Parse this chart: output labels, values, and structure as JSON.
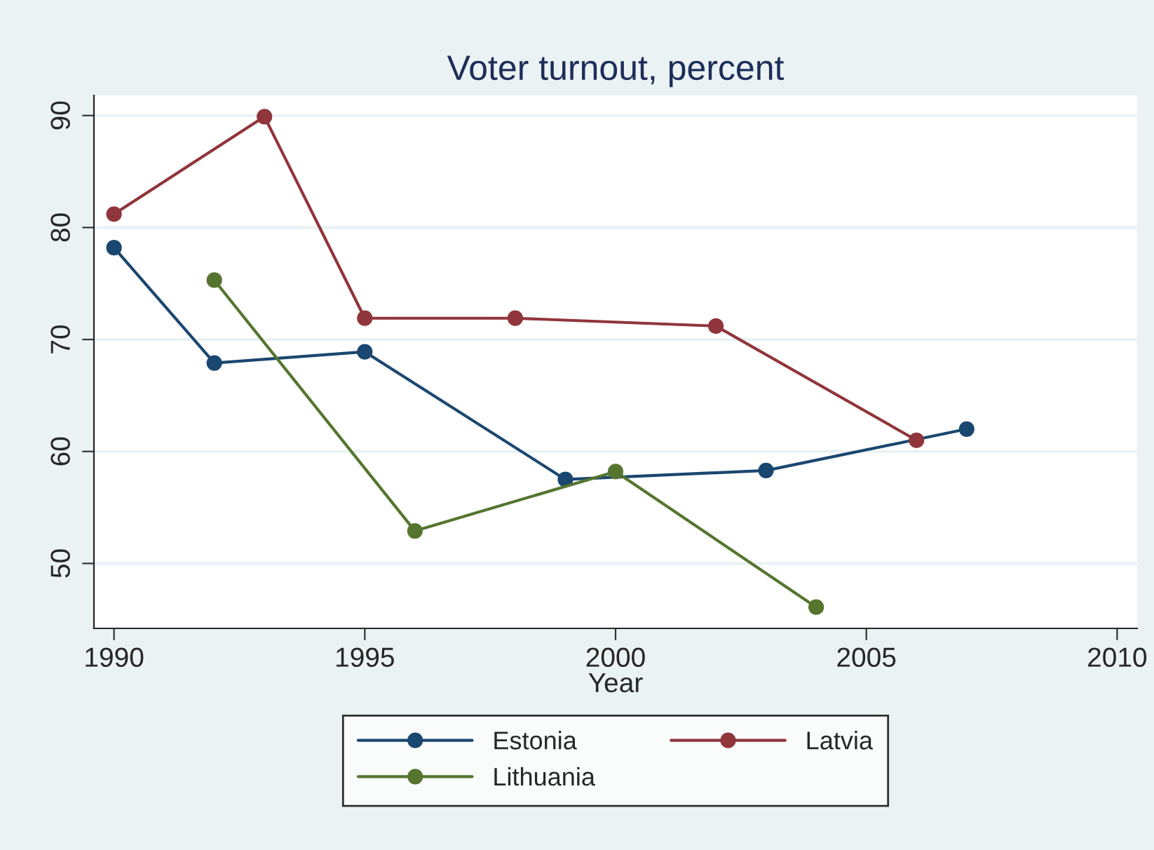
{
  "chart_data": {
    "type": "line",
    "title": "Voter turnout, percent",
    "xlabel": "Year",
    "xlim": [
      1989.6,
      2010.4
    ],
    "xticks": [
      1990,
      1995,
      2000,
      2005,
      2010
    ],
    "ylim": [
      44.2,
      91.8
    ],
    "yticks": [
      50,
      60,
      70,
      80,
      90
    ],
    "grid": "y",
    "legend": "bottom",
    "marker": "circle",
    "line_style": "solid",
    "series": [
      {
        "name": "Estonia",
        "color": "#1a476f",
        "x": [
          1990,
          1992,
          1995,
          1999,
          2003,
          2007
        ],
        "values": [
          78.2,
          67.9,
          68.9,
          57.5,
          58.3,
          62.0
        ]
      },
      {
        "name": "Latvia",
        "color": "#90353b",
        "x": [
          1990,
          1993,
          1995,
          1998,
          2002,
          2006
        ],
        "values": [
          81.2,
          89.9,
          71.9,
          71.9,
          71.2,
          61.0
        ]
      },
      {
        "name": "Lithuania",
        "color": "#55752f",
        "x": [
          1992,
          1996,
          2000,
          2004
        ],
        "values": [
          75.3,
          52.9,
          58.2,
          46.1
        ]
      }
    ]
  }
}
